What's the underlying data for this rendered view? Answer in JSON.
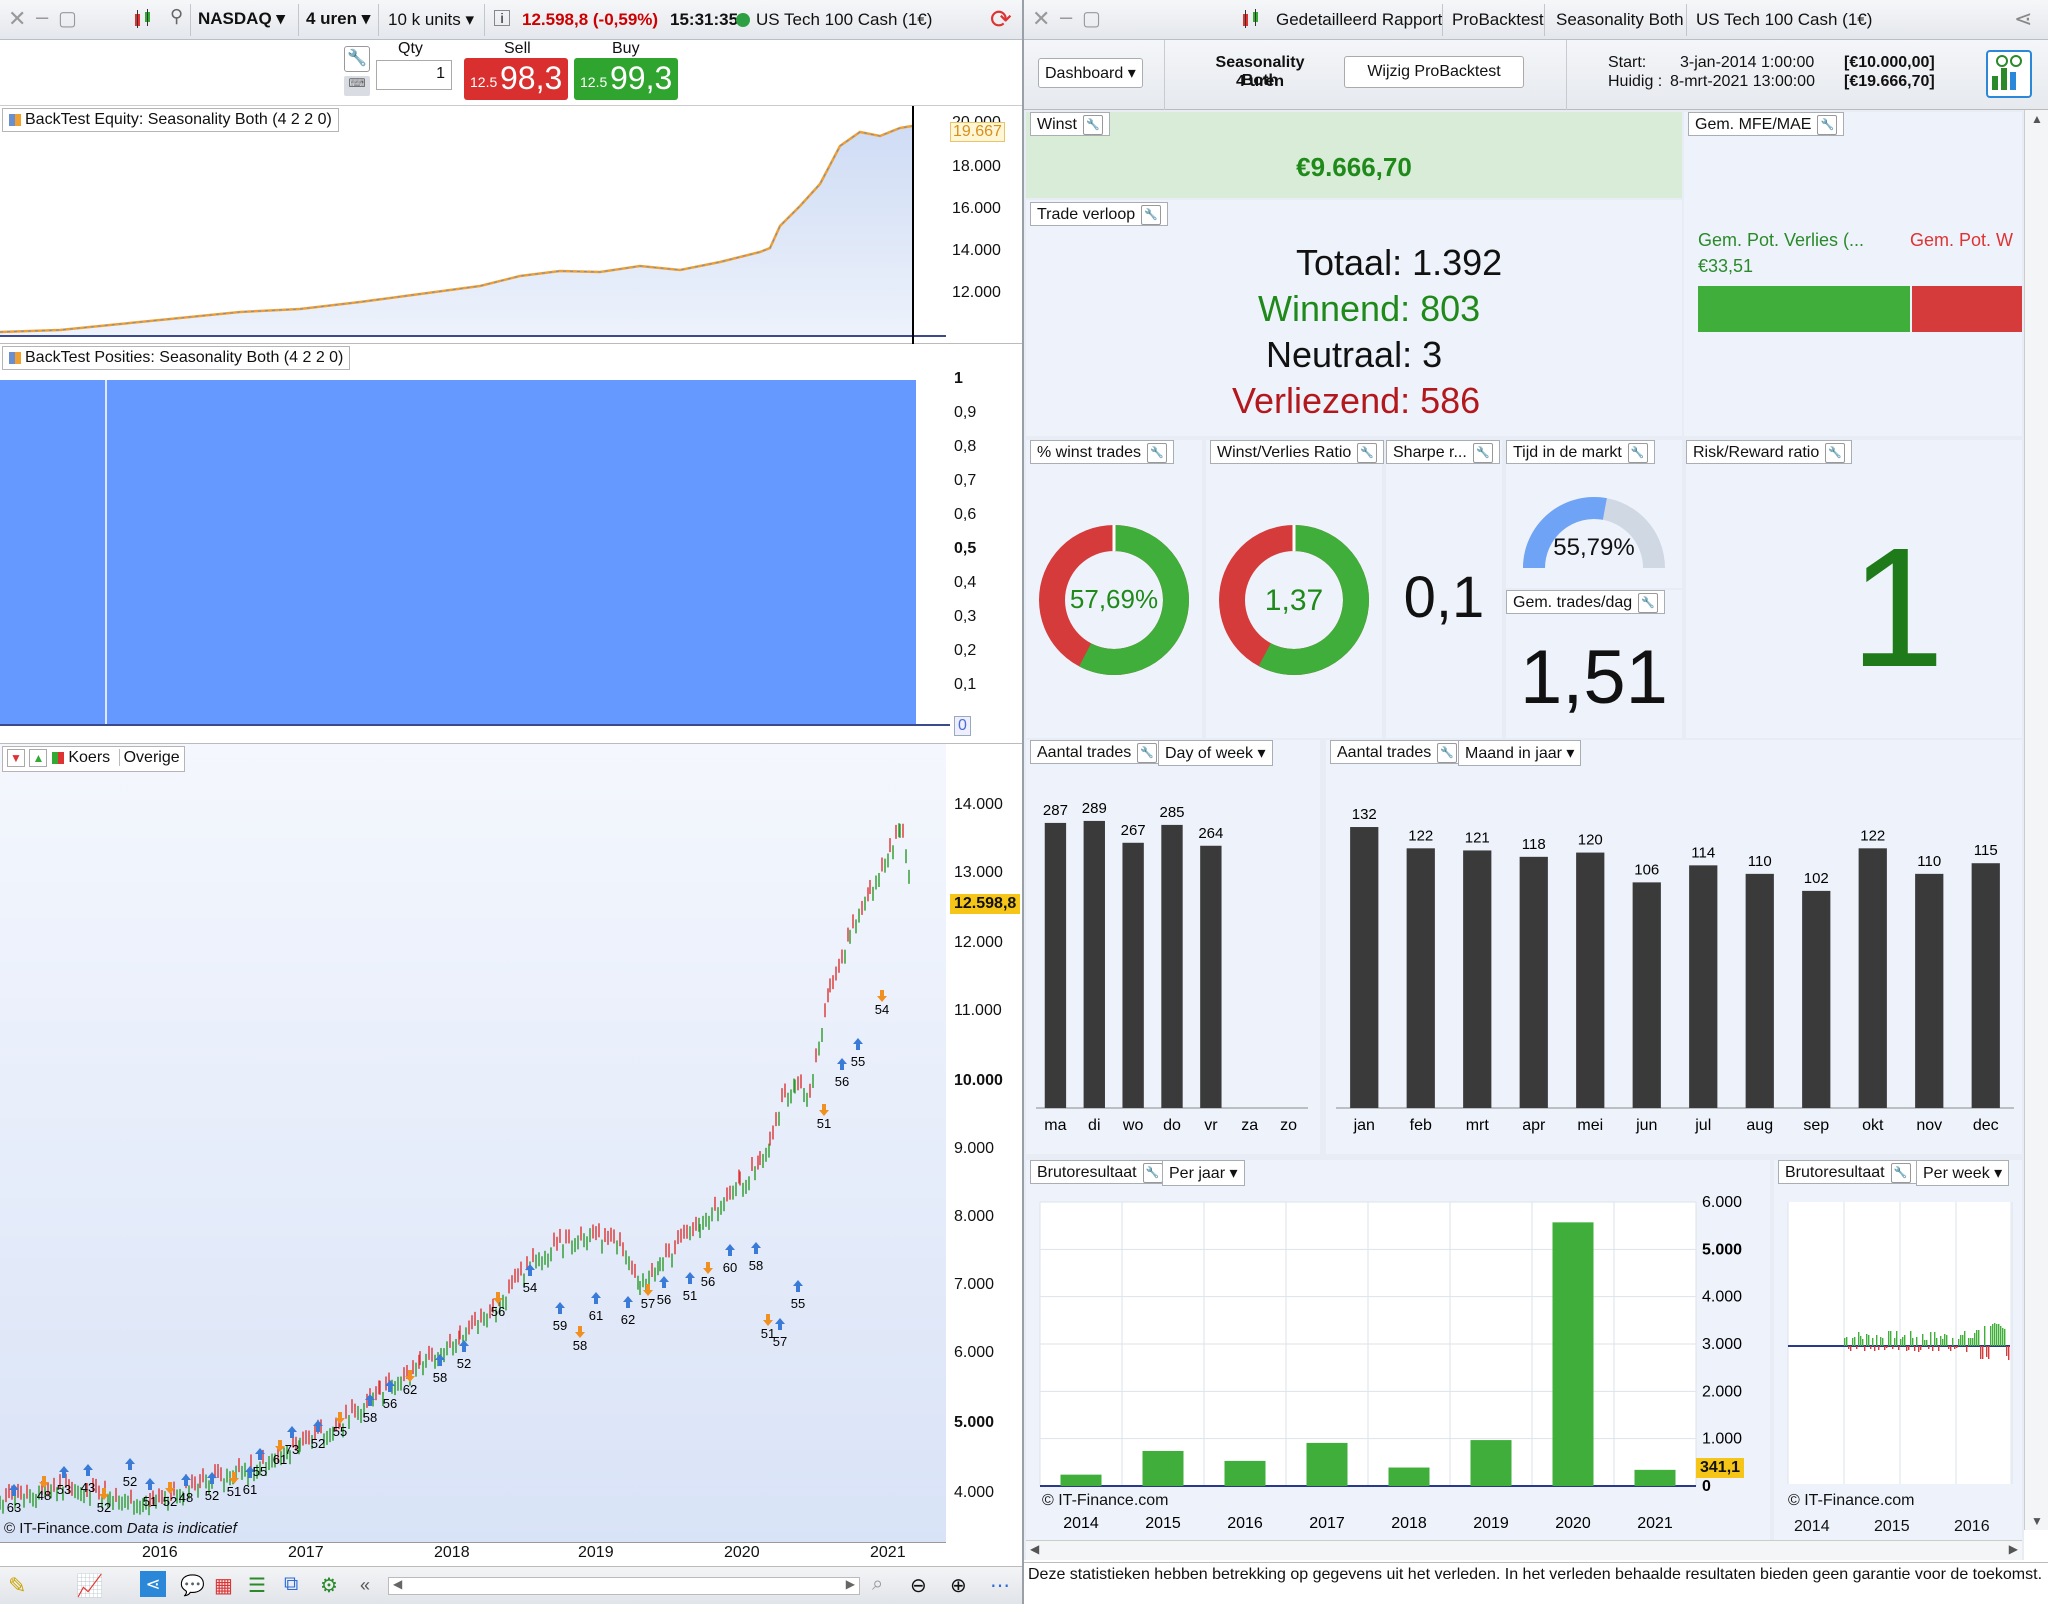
{
  "left_toolbar": {
    "instrument": "NASDAQ",
    "timeframe": "4 uren",
    "units": "10 k units",
    "price_change": "12.598,8 (-0,59%)",
    "time": "15:31:35",
    "market": "US Tech 100 Cash (1€)"
  },
  "order_ticket": {
    "qty_label": "Qty",
    "qty_value": "1",
    "sell_label": "Sell",
    "buy_label": "Buy",
    "sell_prefix": "12.5",
    "sell_big": "98,3",
    "buy_prefix": "12.5",
    "buy_big": "99,3"
  },
  "equity_panel": {
    "title": "BackTest Equity: Seasonality Both (4 2 2 0)",
    "current_value": "19.667",
    "y_ticks": [
      "20.000",
      "18.000",
      "16.000",
      "14.000",
      "12.000"
    ]
  },
  "positions_panel": {
    "title": "BackTest Posities: Seasonality Both (4 2 2 0)",
    "y_ticks": [
      "1",
      "0,9",
      "0,8",
      "0,7",
      "0,6",
      "0,5",
      "0,4",
      "0,3",
      "0,2",
      "0,1",
      "0"
    ]
  },
  "price_panel": {
    "title": "Koers",
    "other_label": "Overige",
    "current_price": "12.598,8",
    "y_ticks": [
      "14.000",
      "13.000",
      "12.000",
      "11.000",
      "10.000",
      "9.000",
      "8.000",
      "7.000",
      "6.000",
      "5.000",
      "4.000"
    ],
    "x_ticks": [
      "2016",
      "2017",
      "2018",
      "2019",
      "2020",
      "2021"
    ],
    "watermark": "© IT-Finance.com",
    "disclaimer": "Data is indicatief",
    "trade_labels": [
      "63",
      "48",
      "53",
      "43",
      "52",
      "52",
      "51",
      "52",
      "48",
      "52",
      "51",
      "61",
      "55",
      "61",
      "73",
      "52",
      "55",
      "58",
      "56",
      "62",
      "58",
      "52",
      "56",
      "54",
      "59",
      "58",
      "61",
      "62",
      "57",
      "56",
      "51",
      "56",
      "60",
      "58",
      "51",
      "57",
      "55",
      "51",
      "56",
      "55",
      "54"
    ]
  },
  "right_toolbar": {
    "tabs": [
      "Gedetailleerd Rapport",
      "ProBacktest",
      "Seasonality Both",
      "US Tech 100 Cash (1€)"
    ]
  },
  "report_header": {
    "dashboard_label": "Dashboard",
    "strategy_name": "Seasonality Both",
    "strategy_tf": "4 uren",
    "edit_button": "Wijzig ProBacktest",
    "start_label": "Start:",
    "start_value": "3-jan-2014 1:00:00",
    "start_capital": "[€10.000,00]",
    "now_label": "Huidig :",
    "now_value": "8-mrt-2021 13:00:00",
    "now_capital": "[€19.666,70]"
  },
  "widgets": {
    "winst": {
      "title": "Winst",
      "value": "€9.666,70"
    },
    "trade_verloop": {
      "title": "Trade verloop",
      "totaal": "Totaal: 1.392",
      "winnend": "Winnend: 803",
      "neutraal": "Neutraal: 3",
      "verliezend": "Verliezend: 586"
    },
    "mfe_mae": {
      "title": "Gem. MFE/MAE",
      "loss_label": "Gem. Pot. Verlies (...",
      "loss_value": "€33,51",
      "win_label": "Gem. Pot. W"
    },
    "win_pct": {
      "title": "% winst trades",
      "value": "57,69%",
      "fraction": 0.5769
    },
    "wl_ratio": {
      "title": "Winst/Verlies Ratio",
      "value": "1,37",
      "fraction": 0.578
    },
    "sharpe": {
      "title": "Sharpe r...",
      "value": "0,1"
    },
    "time_in_market": {
      "title": "Tijd in de markt",
      "value": "55,79%",
      "fraction": 0.5579
    },
    "trades_per_day": {
      "title": "Gem. trades/dag",
      "value": "1,51"
    },
    "risk_reward": {
      "title": "Risk/Reward ratio",
      "value": "1"
    }
  },
  "trades_by_day": {
    "title": "Aantal trades",
    "dropdown": "Day of week"
  },
  "trades_by_month": {
    "title": "Aantal trades",
    "dropdown": "Maand in jaar"
  },
  "gross_by_year": {
    "title": "Brutoresultaat",
    "dropdown": "Per jaar",
    "current_value": "341,1",
    "watermark": "© IT-Finance.com"
  },
  "gross_by_week": {
    "title": "Brutoresultaat",
    "dropdown": "Per week",
    "x_ticks": [
      "2014",
      "2015",
      "2016"
    ],
    "watermark": "© IT-Finance.com"
  },
  "footer_note": "Deze statistieken hebben betrekking op gegevens uit het verleden. In het verleden behaalde resultaten bieden geen garantie voor de toekomst.",
  "colors": {
    "win": "#3fae3a",
    "loss": "#d63b3b",
    "bar_dark": "#3a3a3a",
    "position_fill": "#6699ff",
    "accent_green_text": "#1f8a1a",
    "accent_red_text": "#b3181d"
  },
  "chart_data": [
    {
      "type": "bar",
      "title": "Aantal trades",
      "categories": [
        "ma",
        "di",
        "wo",
        "do",
        "vr",
        "za",
        "zo"
      ],
      "values": [
        287,
        289,
        267,
        285,
        264,
        0,
        0
      ],
      "ylim": [
        0,
        300
      ]
    },
    {
      "type": "bar",
      "title": "Aantal trades",
      "categories": [
        "jan",
        "feb",
        "mrt",
        "apr",
        "mei",
        "jun",
        "jul",
        "aug",
        "sep",
        "okt",
        "nov",
        "dec"
      ],
      "values": [
        132,
        122,
        121,
        118,
        120,
        106,
        114,
        110,
        102,
        122,
        110,
        115
      ],
      "ylim": [
        0,
        140
      ]
    },
    {
      "type": "bar",
      "title": "Brutoresultaat",
      "categories": [
        "2014",
        "2015",
        "2016",
        "2017",
        "2018",
        "2019",
        "2020",
        "2021"
      ],
      "values": [
        240,
        740,
        530,
        910,
        390,
        970,
        5570,
        341.1
      ],
      "y_ticks": [
        "6.000",
        "5.000",
        "4.000",
        "3.000",
        "2.000",
        "1.000",
        "0"
      ],
      "ylim": [
        0,
        6000
      ]
    }
  ]
}
